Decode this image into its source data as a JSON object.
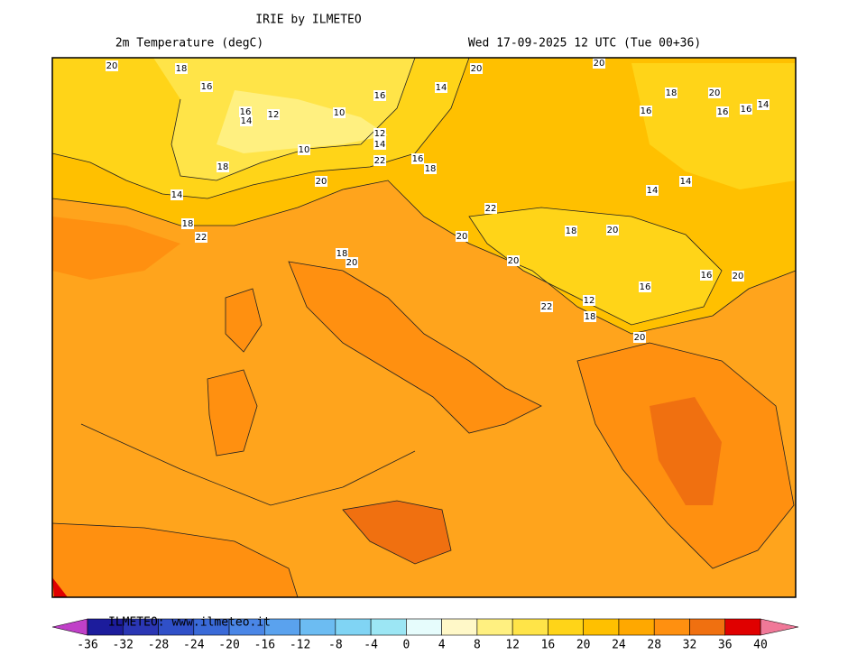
{
  "header": {
    "title": "IRIE by ILMETEO",
    "field": "2m Temperature (degC)",
    "valid": "Wed 17-09-2025 12 UTC (Tue 00+36)"
  },
  "map": {
    "contour_labels": [
      20,
      18,
      16,
      16,
      14,
      12,
      10,
      16,
      14,
      12,
      14,
      22,
      16,
      18,
      10,
      18,
      14,
      18,
      22,
      20,
      18,
      20,
      20,
      20,
      18,
      20,
      16,
      16,
      14,
      16,
      22,
      18,
      20,
      20,
      20,
      22,
      20,
      18,
      12,
      14,
      14,
      16,
      16,
      20
    ]
  },
  "colorbar": {
    "watermark": "ILMETEO: www.ilmeteo.it",
    "ticks": [
      -36,
      -32,
      -28,
      -24,
      -20,
      -16,
      -12,
      -8,
      -4,
      0,
      4,
      8,
      12,
      16,
      20,
      24,
      28,
      32,
      36,
      40
    ],
    "below_color": "#c040c8",
    "above_color": "#f07898",
    "colors": [
      "#1c1c9c",
      "#2a36b4",
      "#3050c8",
      "#3a6ad8",
      "#4a86e6",
      "#5aa2ee",
      "#6cbcf2",
      "#80d4f4",
      "#9ce6f4",
      "#e6fcfc",
      "#fff8c8",
      "#fff080",
      "#ffe448",
      "#ffd418",
      "#ffc000",
      "#ffa800",
      "#ff9010",
      "#f07010",
      "#e00000"
    ]
  }
}
